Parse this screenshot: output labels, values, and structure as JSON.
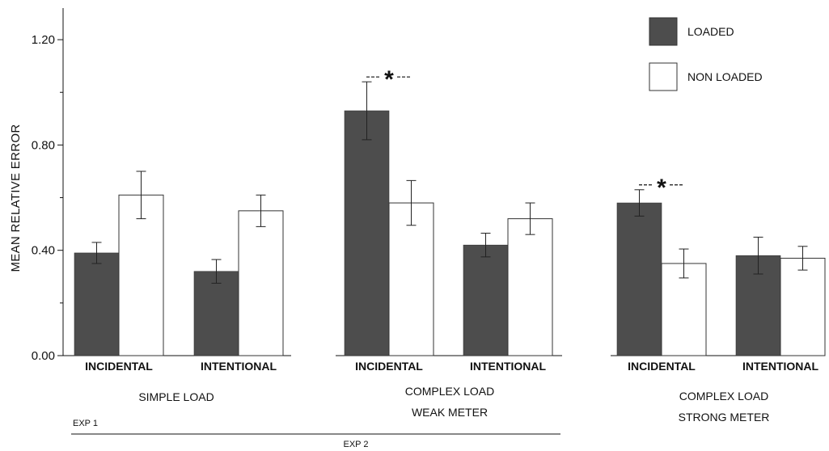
{
  "chart_data": {
    "type": "bar",
    "ylabel": "MEAN RELATIVE ERROR",
    "ylim": [
      0,
      1.32
    ],
    "yticks": [
      "0.00",
      "0.40",
      "0.80",
      "1.20"
    ],
    "ytick_values": [
      0,
      0.4,
      0.8,
      1.2
    ],
    "legend": {
      "position": "top-right",
      "entries": [
        {
          "label": "LOADED",
          "color": "#4d4d4d"
        },
        {
          "label": "NON LOADED",
          "color": "#ffffff"
        }
      ]
    },
    "panels": [
      {
        "group_lines": [
          "SIMPLE LOAD"
        ],
        "categories": [
          "INCIDENTAL",
          "INTENTIONAL"
        ],
        "series": [
          {
            "name": "LOADED",
            "values": [
              0.39,
              0.32
            ],
            "errors": [
              0.04,
              0.045
            ]
          },
          {
            "name": "NON LOADED",
            "values": [
              0.61,
              0.55
            ],
            "errors": [
              0.09,
              0.06
            ]
          }
        ],
        "significance": [
          false,
          false
        ]
      },
      {
        "group_lines": [
          "COMPLEX LOAD",
          "WEAK  METER"
        ],
        "categories": [
          "INCIDENTAL",
          "INTENTIONAL"
        ],
        "series": [
          {
            "name": "LOADED",
            "values": [
              0.93,
              0.42
            ],
            "errors": [
              0.11,
              0.045
            ]
          },
          {
            "name": "NON LOADED",
            "values": [
              0.58,
              0.52
            ],
            "errors": [
              0.085,
              0.06
            ]
          }
        ],
        "significance": [
          true,
          false
        ]
      },
      {
        "group_lines": [
          "COMPLEX LOAD",
          "STRONG METER"
        ],
        "categories": [
          "INCIDENTAL",
          "INTENTIONAL"
        ],
        "series": [
          {
            "name": "LOADED",
            "values": [
              0.58,
              0.38
            ],
            "errors": [
              0.05,
              0.07
            ]
          },
          {
            "name": "NON LOADED",
            "values": [
              0.35,
              0.37
            ],
            "errors": [
              0.055,
              0.045
            ]
          }
        ],
        "significance": [
          true,
          false
        ]
      }
    ],
    "experiments": [
      "EXP 1",
      "EXP 2"
    ],
    "significance_marker": "*"
  }
}
